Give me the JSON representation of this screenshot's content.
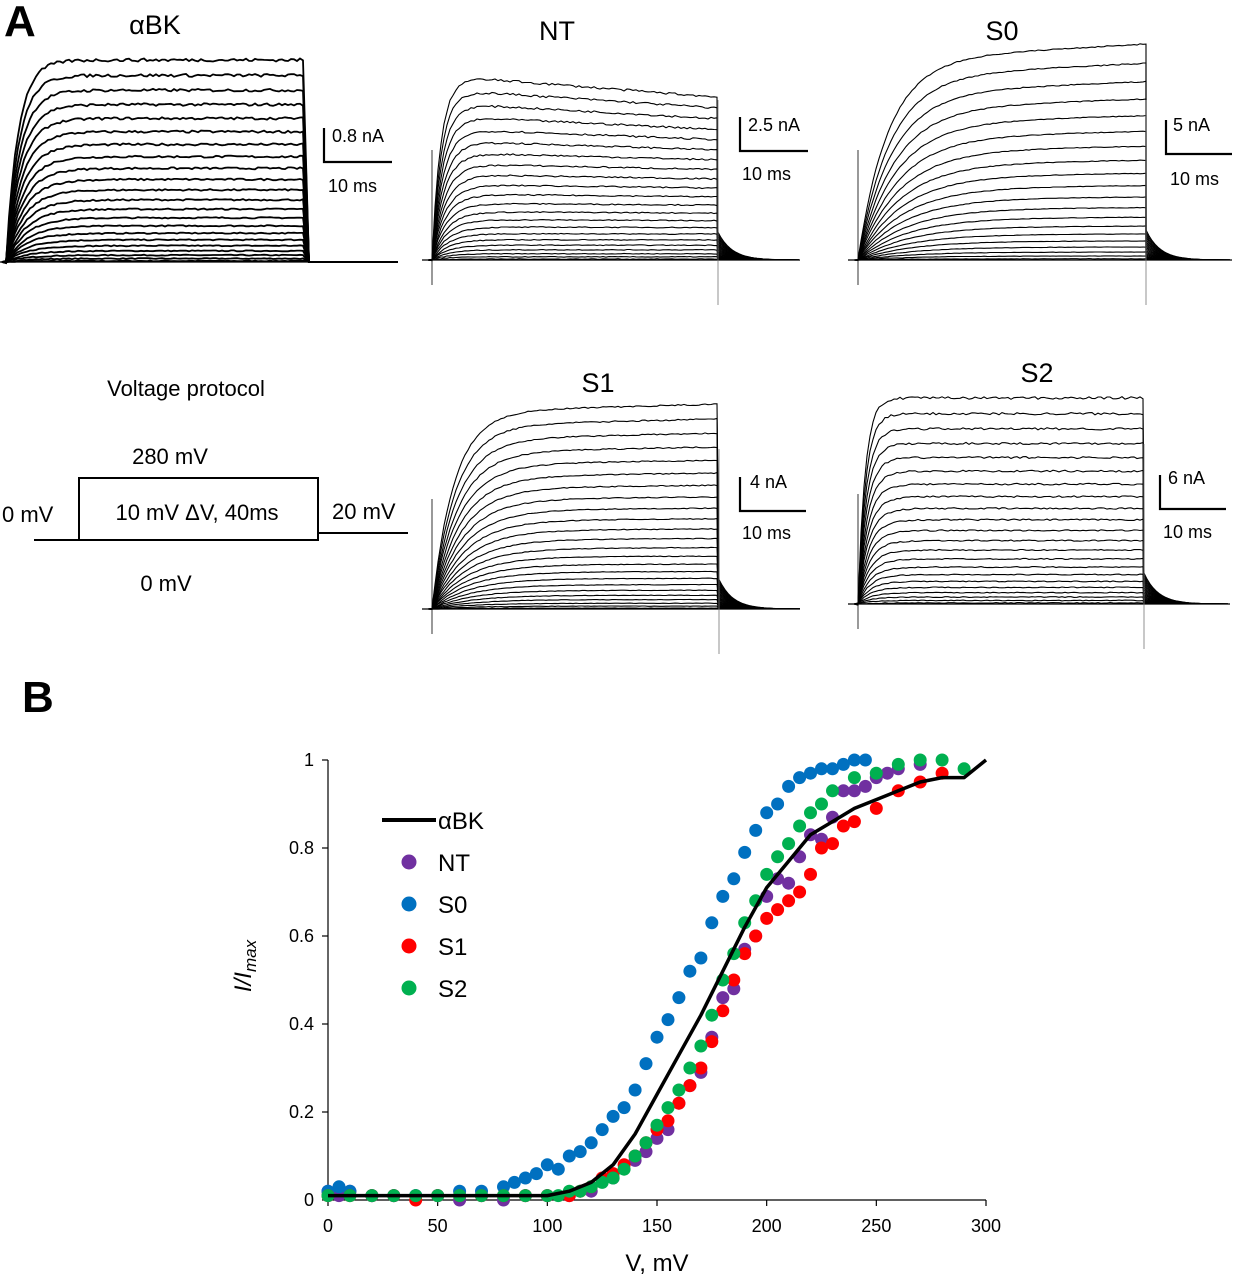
{
  "panel_labels": {
    "a": "A",
    "b": "B"
  },
  "traces": [
    {
      "id": "aBK",
      "title": "αBK",
      "scale_current": "0.8 nA",
      "scale_time": "10 ms",
      "n_traces": 22,
      "tail": false
    },
    {
      "id": "NT",
      "title": "NT",
      "scale_current": "2.5 nA",
      "scale_time": "10 ms",
      "n_traces": 22,
      "tail": true
    },
    {
      "id": "S0",
      "title": "S0",
      "scale_current": "5 nA",
      "scale_time": "10 ms",
      "n_traces": 20,
      "tail": true
    },
    {
      "id": "S1",
      "title": "S1",
      "scale_current": "4 nA",
      "scale_time": "10 ms",
      "n_traces": 24,
      "tail": true
    },
    {
      "id": "S2",
      "title": "S2",
      "scale_current": "6 nA",
      "scale_time": "10 ms",
      "n_traces": 22,
      "tail": true
    }
  ],
  "protocol": {
    "title": "Voltage protocol",
    "top_label": "280 mV",
    "left_label": "0 mV",
    "step_label": "10 mV ΔV, 40ms",
    "right_label": "20 mV",
    "bottom_label": "0 mV"
  },
  "chart_data": {
    "type": "scatter",
    "xlabel": "V, mV",
    "ylabel_main": "I/I",
    "ylabel_sub": "max",
    "xlim": [
      0,
      300
    ],
    "ylim": [
      0,
      1
    ],
    "xticks": [
      "0",
      "50",
      "100",
      "150",
      "200",
      "250",
      "300"
    ],
    "yticks": [
      "0",
      "0.2",
      "0.4",
      "0.6",
      "0.8",
      "1"
    ],
    "legend_position": "upper-left",
    "series": [
      {
        "name": "αBK",
        "type": "line",
        "color": "#000000",
        "x": [
          0,
          100,
          110,
          120,
          130,
          140,
          150,
          160,
          170,
          180,
          190,
          200,
          210,
          220,
          230,
          240,
          250,
          260,
          270,
          280,
          290,
          300
        ],
        "y": [
          0.01,
          0.01,
          0.02,
          0.04,
          0.08,
          0.15,
          0.24,
          0.33,
          0.42,
          0.52,
          0.62,
          0.71,
          0.77,
          0.83,
          0.86,
          0.89,
          0.91,
          0.93,
          0.95,
          0.96,
          0.96,
          1.0
        ]
      },
      {
        "name": "NT",
        "type": "scatter",
        "color": "#7030a0",
        "x": [
          0,
          5,
          10,
          20,
          30,
          40,
          50,
          60,
          70,
          80,
          90,
          100,
          110,
          120,
          130,
          140,
          145,
          150,
          155,
          160,
          165,
          170,
          175,
          180,
          185,
          190,
          195,
          200,
          205,
          210,
          215,
          220,
          225,
          230,
          235,
          240,
          245,
          250,
          255,
          260,
          270
        ],
        "y": [
          0.02,
          0.01,
          0.02,
          0.01,
          0.01,
          0.01,
          0.01,
          0.0,
          0.01,
          0.0,
          0.01,
          0.01,
          0.01,
          0.02,
          0.05,
          0.09,
          0.11,
          0.14,
          0.16,
          0.22,
          0.26,
          0.29,
          0.37,
          0.46,
          0.48,
          0.57,
          0.6,
          0.69,
          0.73,
          0.72,
          0.78,
          0.83,
          0.82,
          0.87,
          0.93,
          0.93,
          0.94,
          0.96,
          0.97,
          0.98,
          0.99
        ]
      },
      {
        "name": "S0",
        "type": "scatter",
        "color": "#0070c0",
        "x": [
          0,
          5,
          10,
          20,
          30,
          40,
          50,
          60,
          70,
          80,
          85,
          90,
          95,
          100,
          105,
          110,
          115,
          120,
          125,
          130,
          135,
          140,
          145,
          150,
          155,
          160,
          165,
          170,
          175,
          180,
          185,
          190,
          195,
          200,
          205,
          210,
          215,
          220,
          225,
          230,
          235,
          240,
          245
        ],
        "y": [
          0.02,
          0.03,
          0.02,
          0.01,
          0.01,
          0.01,
          0.01,
          0.02,
          0.02,
          0.03,
          0.04,
          0.05,
          0.06,
          0.08,
          0.07,
          0.1,
          0.11,
          0.13,
          0.16,
          0.19,
          0.21,
          0.25,
          0.31,
          0.37,
          0.41,
          0.46,
          0.52,
          0.55,
          0.63,
          0.69,
          0.73,
          0.79,
          0.84,
          0.88,
          0.9,
          0.94,
          0.96,
          0.97,
          0.98,
          0.98,
          0.99,
          1.0,
          1.0
        ]
      },
      {
        "name": "S1",
        "type": "scatter",
        "color": "#ff0000",
        "x": [
          0,
          10,
          20,
          30,
          40,
          50,
          60,
          70,
          80,
          90,
          100,
          110,
          115,
          120,
          125,
          130,
          135,
          140,
          145,
          150,
          155,
          160,
          165,
          170,
          175,
          180,
          185,
          190,
          195,
          200,
          205,
          210,
          215,
          220,
          225,
          230,
          235,
          240,
          250,
          260,
          270,
          280
        ],
        "y": [
          0.01,
          0.01,
          0.01,
          0.01,
          0.0,
          0.01,
          0.01,
          0.01,
          0.01,
          0.01,
          0.01,
          0.01,
          0.02,
          0.03,
          0.05,
          0.06,
          0.08,
          0.1,
          0.13,
          0.16,
          0.18,
          0.22,
          0.26,
          0.3,
          0.36,
          0.43,
          0.5,
          0.56,
          0.6,
          0.64,
          0.66,
          0.68,
          0.7,
          0.74,
          0.8,
          0.81,
          0.85,
          0.86,
          0.89,
          0.93,
          0.95,
          0.97
        ]
      },
      {
        "name": "S2",
        "type": "scatter",
        "color": "#00b050",
        "x": [
          0,
          10,
          20,
          30,
          40,
          50,
          60,
          70,
          80,
          90,
          100,
          105,
          110,
          115,
          120,
          125,
          130,
          135,
          140,
          145,
          150,
          155,
          160,
          165,
          170,
          175,
          180,
          185,
          190,
          195,
          200,
          205,
          210,
          215,
          220,
          225,
          230,
          240,
          250,
          260,
          270,
          280,
          290
        ],
        "y": [
          0.01,
          0.01,
          0.01,
          0.01,
          0.01,
          0.01,
          0.01,
          0.01,
          0.01,
          0.01,
          0.01,
          0.01,
          0.02,
          0.02,
          0.03,
          0.04,
          0.05,
          0.07,
          0.1,
          0.13,
          0.17,
          0.21,
          0.25,
          0.3,
          0.35,
          0.42,
          0.5,
          0.56,
          0.63,
          0.68,
          0.74,
          0.78,
          0.81,
          0.85,
          0.88,
          0.9,
          0.93,
          0.96,
          0.97,
          0.99,
          1.0,
          1.0,
          0.98
        ]
      }
    ]
  }
}
